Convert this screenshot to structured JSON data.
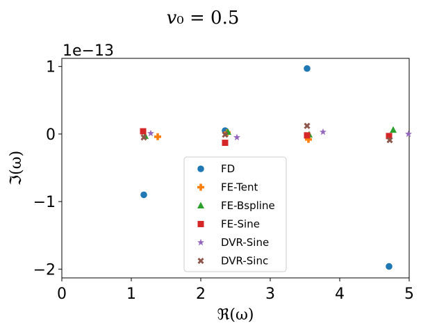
{
  "chart_data": {
    "type": "scatter",
    "title": "v₀ = 0.5",
    "xlabel": "ℜ(ω)",
    "ylabel": "ℑ(ω)",
    "y_offset_label": "1e−13",
    "xlim": [
      0,
      5
    ],
    "ylim": [
      -2.13,
      1.12
    ],
    "xticks": [
      0,
      1,
      2,
      3,
      4,
      5
    ],
    "xtick_labels": [
      "0",
      "1",
      "2",
      "3",
      "4",
      "5"
    ],
    "yticks": [
      1,
      0,
      -1,
      -2
    ],
    "ytick_labels": [
      "1",
      "0",
      "−1",
      "−2"
    ],
    "grid": false,
    "legend_position": "lower-center",
    "series": [
      {
        "name": "FD",
        "color": "#1f77b4",
        "marker": "circle",
        "points": [
          [
            1.18,
            -0.9
          ],
          [
            2.35,
            0.05
          ],
          [
            3.53,
            0.97
          ],
          [
            4.71,
            -1.96
          ]
        ]
      },
      {
        "name": "FE-Tent",
        "color": "#ff7f0e",
        "marker": "plus",
        "points": [
          [
            1.38,
            -0.04
          ],
          [
            2.38,
            0.02
          ],
          [
            3.55,
            -0.08
          ]
        ]
      },
      {
        "name": "FE-Bspline",
        "color": "#2ca02c",
        "marker": "triangle",
        "points": [
          [
            1.2,
            -0.03
          ],
          [
            2.39,
            0.03
          ],
          [
            3.56,
            -0.01
          ],
          [
            4.77,
            0.06
          ]
        ]
      },
      {
        "name": "FE-Sine",
        "color": "#d62728",
        "marker": "square",
        "points": [
          [
            1.17,
            0.04
          ],
          [
            2.35,
            -0.13
          ],
          [
            3.53,
            -0.02
          ],
          [
            4.71,
            -0.03
          ]
        ]
      },
      {
        "name": "DVR-Sine",
        "color": "#9467bd",
        "marker": "star",
        "points": [
          [
            1.28,
            0.01
          ],
          [
            2.52,
            -0.05
          ],
          [
            3.76,
            0.03
          ],
          [
            4.99,
            0.0
          ]
        ]
      },
      {
        "name": "DVR-Sinc",
        "color": "#8c564b",
        "marker": "x",
        "points": [
          [
            1.18,
            -0.05
          ],
          [
            2.35,
            -0.01
          ],
          [
            3.53,
            0.12
          ],
          [
            4.72,
            -0.09
          ]
        ]
      }
    ]
  }
}
